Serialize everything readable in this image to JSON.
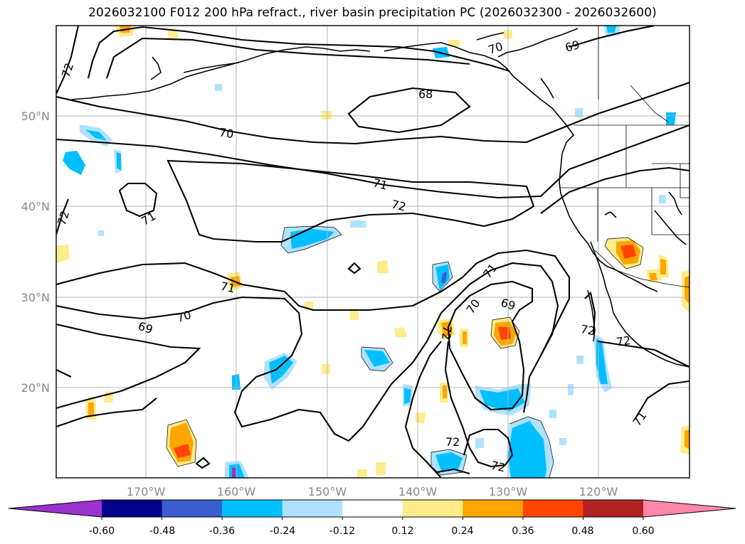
{
  "title": "2026032100 F012 200 hPa refract., river basin precipitation PC (2026032300 - 2026032600)",
  "latitude_labels": [
    "50°N",
    "40°N",
    "30°N",
    "20°N"
  ],
  "longitude_labels": [
    "170°W",
    "160°W",
    "150°W",
    "140°W",
    "130°W",
    "120°W"
  ],
  "contour_labels": [
    "72",
    "72",
    "70",
    "69",
    "68",
    "70",
    "71",
    "72",
    "71",
    "71",
    "70",
    "69",
    "71",
    "70",
    "69",
    "72",
    "72",
    "72",
    "72",
    "71",
    "72",
    "71"
  ],
  "colorbar": {
    "tick_labels": [
      "-0.60",
      "-0.48",
      "-0.36",
      "-0.24",
      "-0.12",
      "0.12",
      "0.24",
      "0.36",
      "0.48",
      "0.60"
    ],
    "colors": [
      "#9932cc",
      "#00008b",
      "#3a5fcd",
      "#00bfff",
      "#b0e2ff",
      "#ffffff",
      "#ffec8b",
      "#ffa500",
      "#ff4500",
      "#b22222",
      "#ff88aa"
    ]
  },
  "chart_data": {
    "type": "map",
    "projection": "cylindrical",
    "lon_range": [
      -180,
      -110
    ],
    "lat_range": [
      10,
      60
    ],
    "contour_levels": [
      68,
      69,
      70,
      71,
      72
    ],
    "fill_levels": [
      -0.6,
      -0.48,
      -0.36,
      -0.24,
      -0.12,
      0.12,
      0.24,
      0.36,
      0.48,
      0.6
    ]
  }
}
